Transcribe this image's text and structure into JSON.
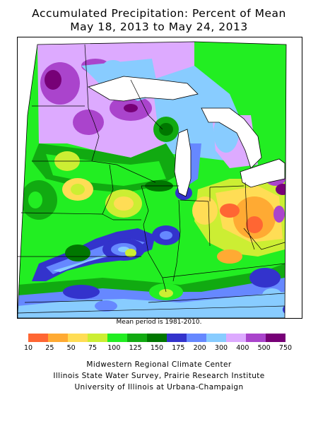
{
  "title_line1": "Accumulated Precipitation: Percent of Mean",
  "title_line2": "May 18, 2013 to May 24, 2013",
  "mean_note": "Mean period is 1981-2010.",
  "legend": {
    "bins": [
      {
        "label": "10",
        "color": "#ff6633"
      },
      {
        "label": "25",
        "color": "#ffaa33"
      },
      {
        "label": "50",
        "color": "#ffdd55"
      },
      {
        "label": "75",
        "color": "#ccee33"
      },
      {
        "label": "100",
        "color": "#22ee22"
      },
      {
        "label": "125",
        "color": "#11aa11"
      },
      {
        "label": "150",
        "color": "#007700"
      },
      {
        "label": "175",
        "color": "#3333cc"
      },
      {
        "label": "200",
        "color": "#6688ff"
      },
      {
        "label": "300",
        "color": "#88ccff"
      },
      {
        "label": "400",
        "color": "#ddaaff"
      },
      {
        "label": "500",
        "color": "#aa44cc"
      },
      {
        "label": "750",
        "color": "#770077"
      }
    ]
  },
  "credits": {
    "line1": "Midwestern Regional Climate Center",
    "line2": "Illinois State Water Survey, Prairie Research Institute",
    "line3": "University of Illinois at Urbana-Champaign"
  }
}
